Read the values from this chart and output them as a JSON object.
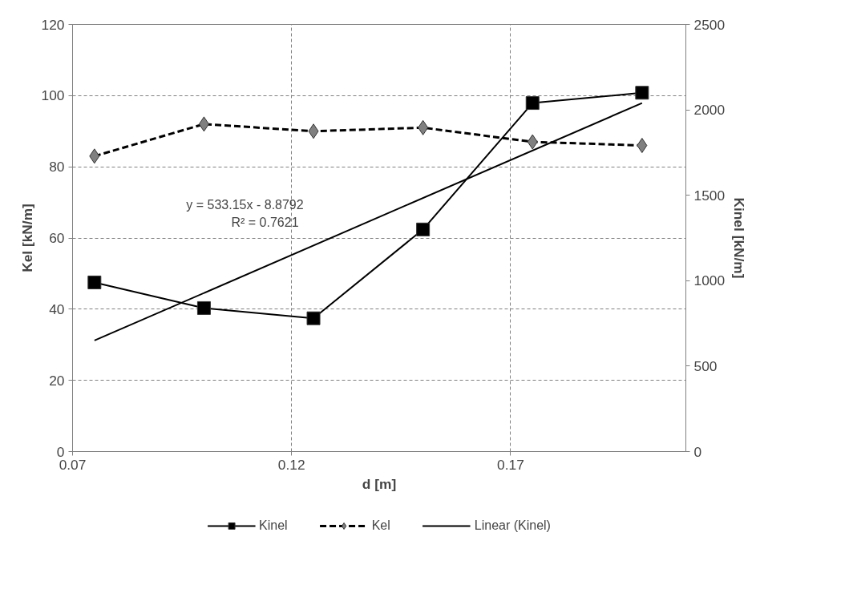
{
  "chart_data": {
    "type": "line",
    "xlabel": "d [m]",
    "ylabel": "Kel [kN/m]",
    "y2label": "Kinel [kN/m]",
    "xlim": [
      0.07,
      0.21
    ],
    "xticks": [
      0.07,
      0.12,
      0.17
    ],
    "ylim": [
      0,
      120
    ],
    "yticks": [
      0,
      20,
      40,
      60,
      80,
      100,
      120
    ],
    "y2lim": [
      0,
      2500
    ],
    "y2ticks": [
      0,
      500,
      1000,
      1500,
      2000,
      2500
    ],
    "grid": true,
    "legend": "bottom",
    "x": [
      0.075,
      0.1,
      0.125,
      0.15,
      0.175,
      0.2
    ],
    "series": [
      {
        "name": "Kinel",
        "color": "#000000",
        "axis": "y2",
        "marker": "square",
        "line_style": "solid",
        "values": [
          990,
          840,
          780,
          1300,
          2040,
          2100
        ]
      },
      {
        "name": "Kel",
        "color": "#808080",
        "marker": "diamond",
        "line_style": "dashed",
        "values": [
          83,
          92,
          90,
          91,
          87,
          86
        ]
      },
      {
        "name": "Linear (Kinel)",
        "color": "#000000",
        "axis": "y2",
        "marker": "none",
        "line_style": "solid",
        "x": [
          0.075,
          0.2
        ],
        "values": [
          650,
          2040
        ]
      }
    ],
    "annotations": [
      "y = 533.15x - 8.8792",
      "R² = 0.7621"
    ]
  }
}
